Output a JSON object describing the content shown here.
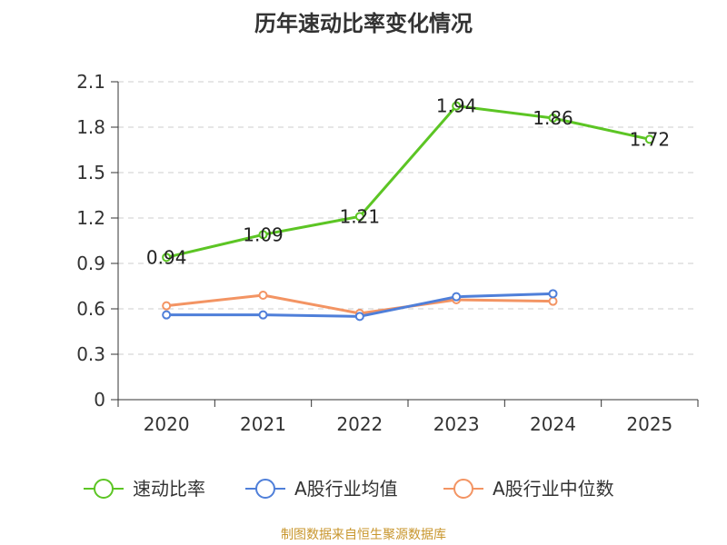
{
  "chart_data": {
    "type": "line",
    "title": "历年速动比率变化情况",
    "categories": [
      "2020",
      "2021",
      "2022",
      "2023",
      "2024",
      "2025"
    ],
    "y_ticks": [
      "0",
      "0.3",
      "0.6",
      "0.9",
      "1.2",
      "1.5",
      "1.8",
      "2.1"
    ],
    "ylim": [
      0,
      2.1
    ],
    "grid": true,
    "legend_position": "bottom",
    "series": [
      {
        "name": "速动比率",
        "color": "#5cc524",
        "values": [
          0.94,
          1.09,
          1.21,
          1.94,
          1.86,
          1.72
        ],
        "labels": [
          "0.94",
          "1.09",
          "1.21",
          "1.94",
          "1.86",
          "1.72"
        ]
      },
      {
        "name": "A股行业均值",
        "color": "#4f7fd9",
        "values": [
          0.56,
          0.56,
          0.55,
          0.68,
          0.7,
          null
        ]
      },
      {
        "name": "A股行业中位数",
        "color": "#f39463",
        "values": [
          0.62,
          0.69,
          0.57,
          0.66,
          0.65,
          null
        ]
      }
    ],
    "source": "制图数据来自恒生聚源数据库"
  }
}
